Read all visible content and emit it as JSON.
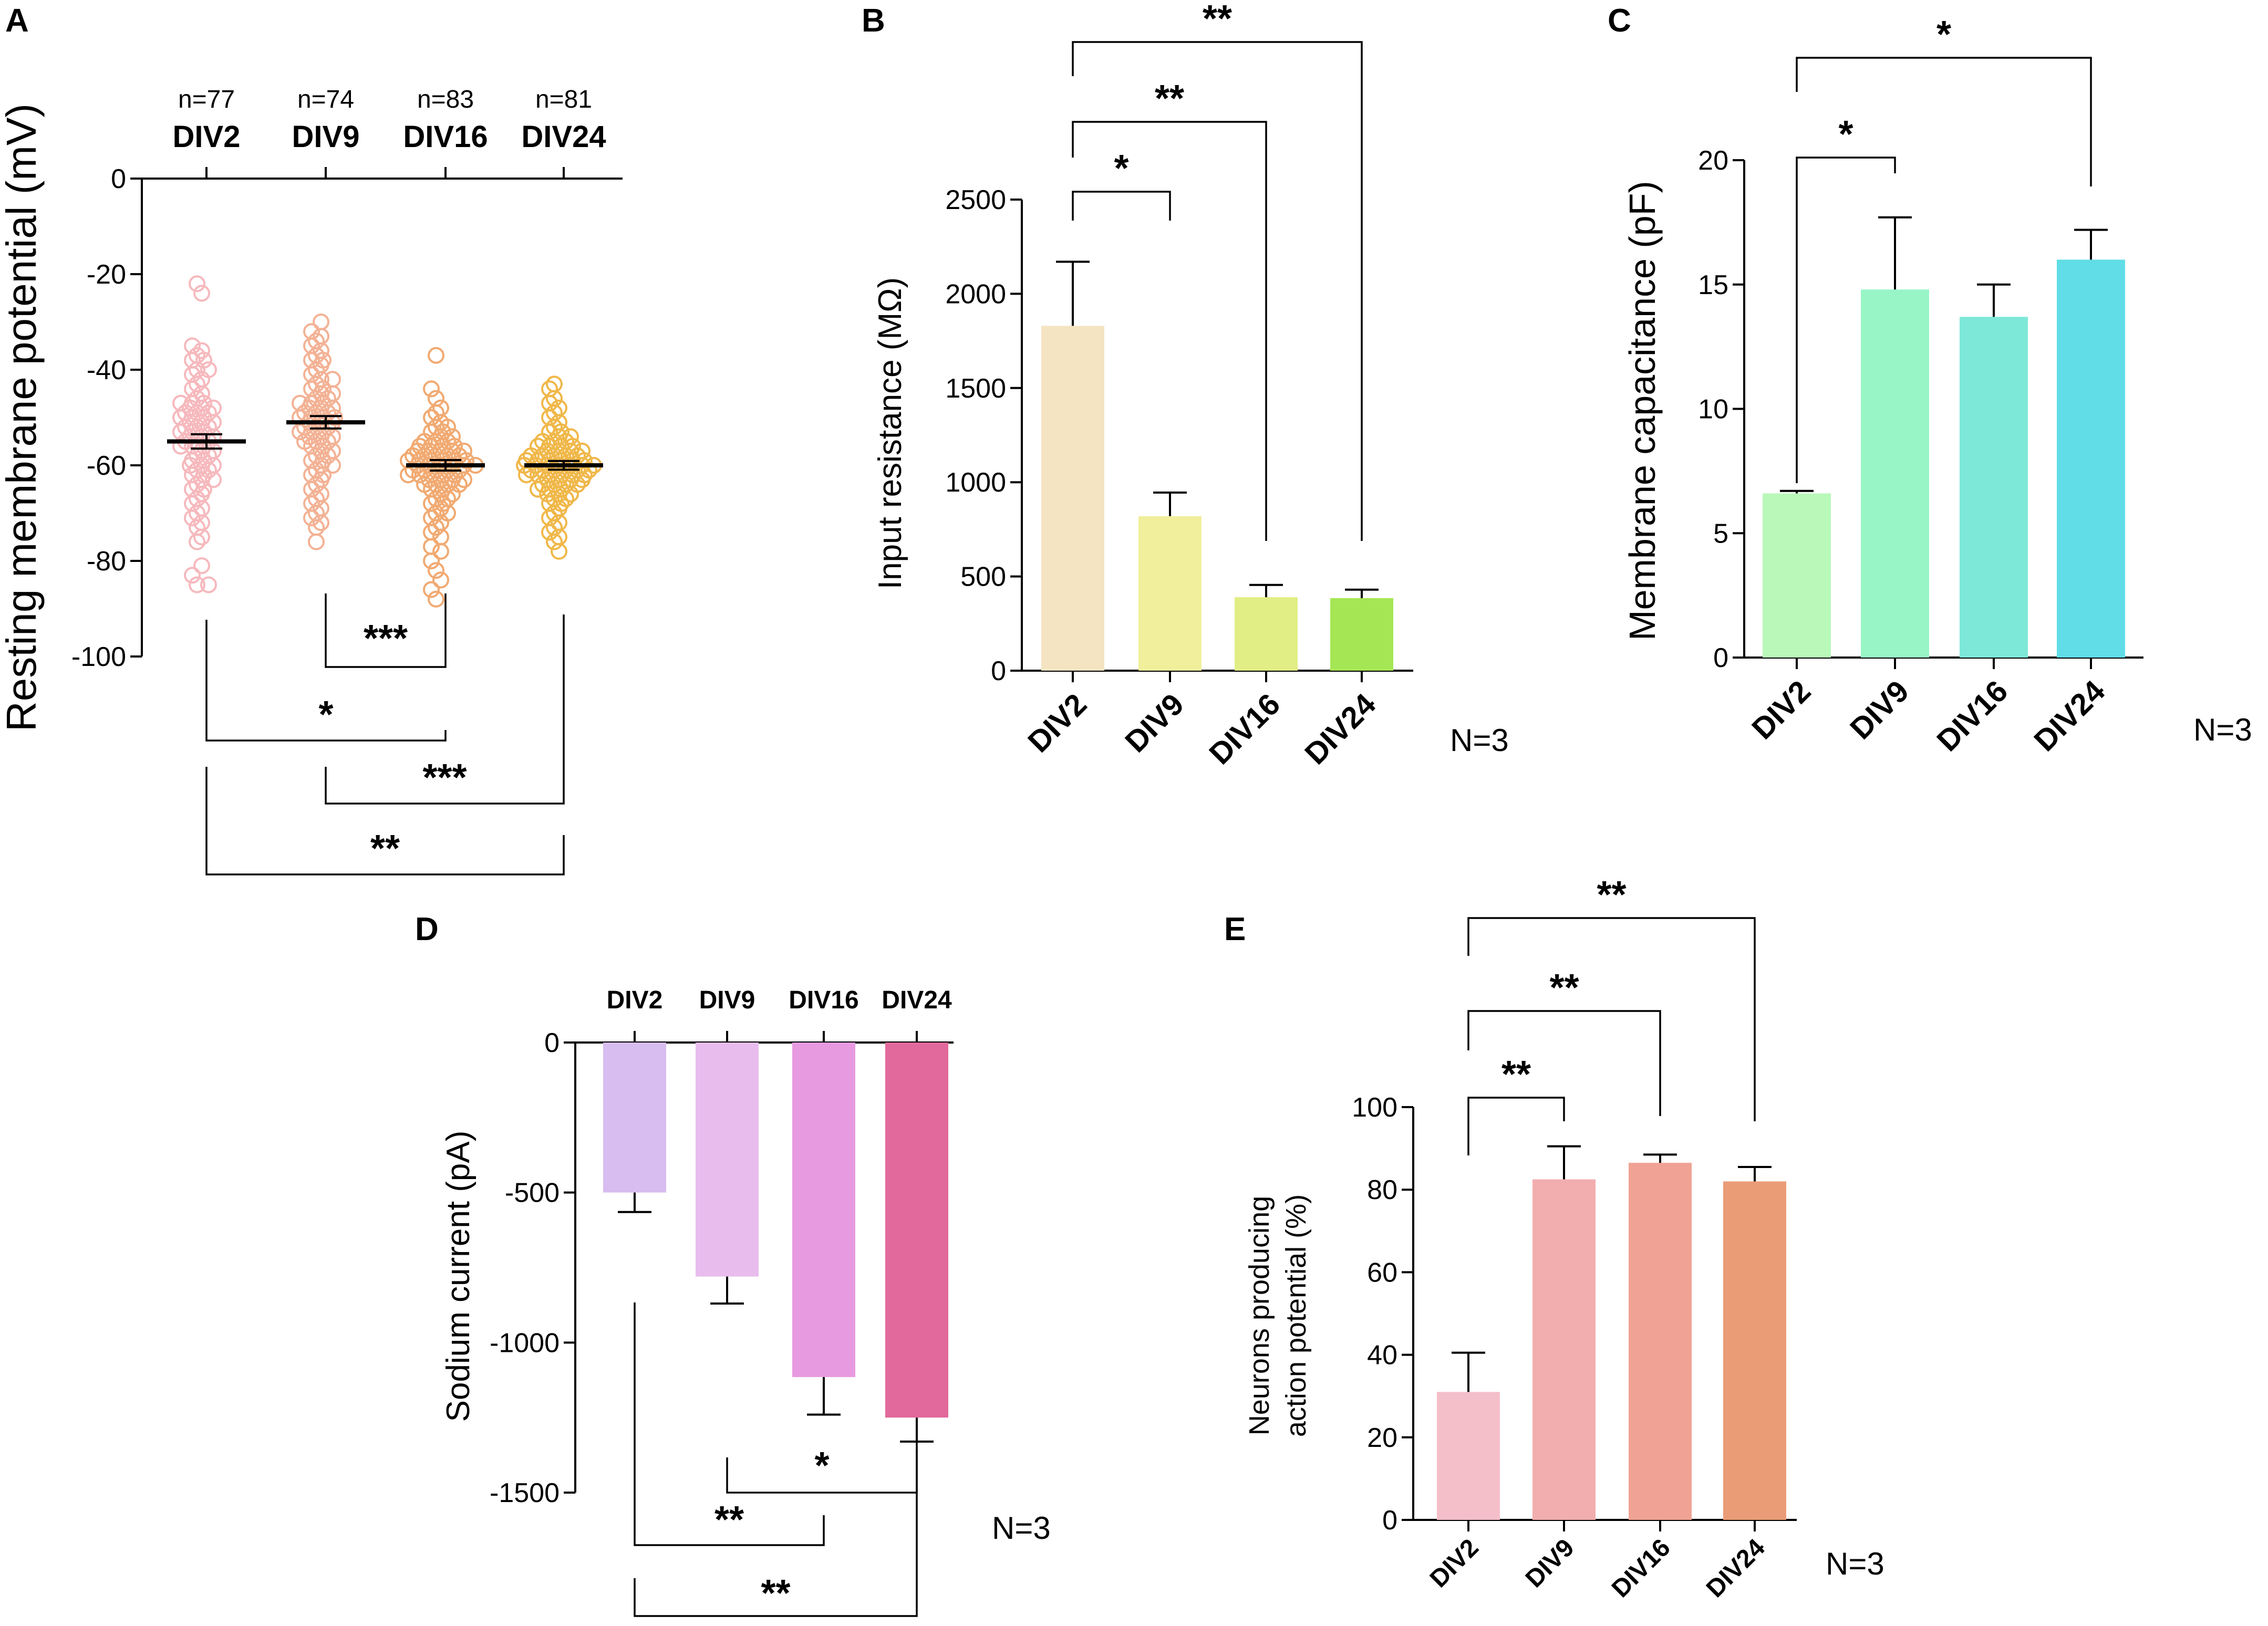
{
  "panels": {
    "A": "A",
    "B": "B",
    "C": "C",
    "D": "D",
    "E": "E"
  },
  "colors": {
    "A": [
      "#f6b9bd",
      "#f3b295",
      "#f1aa72",
      "#f0b84a"
    ],
    "B": [
      "#f4e4c2",
      "#f1ef9c",
      "#e1ee85",
      "#a5e655"
    ],
    "C": [
      "#b9f8b8",
      "#98f6c6",
      "#7ee8d8",
      "#60dde6"
    ],
    "D": [
      "#d8bdf0",
      "#e8bdee",
      "#e89ae0",
      "#e2699c"
    ],
    "E": [
      "#f4bfc9",
      "#f2aeae",
      "#f0a394",
      "#ea9c76"
    ]
  },
  "chart_data": [
    {
      "panel": "A",
      "type": "scatter",
      "ylabel": "Resting membrane potential (mV)",
      "categories": [
        "DIV2",
        "DIV9",
        "DIV16",
        "DIV24"
      ],
      "n_labels": [
        "n=77",
        "n=74",
        "n=83",
        "n=81"
      ],
      "ylim": [
        -100,
        0
      ],
      "yticks": [
        "0",
        "-20",
        "-40",
        "-60",
        "-80",
        "-100"
      ],
      "means": [
        -55,
        -51,
        -60,
        -60
      ],
      "sem": [
        1.5,
        1.3,
        1.1,
        0.9
      ],
      "points": [
        [
          -22,
          -24,
          -35,
          -36,
          -37,
          -38,
          -40,
          -40,
          -41,
          -42,
          -43,
          -44,
          -45,
          -46,
          -47,
          -47,
          -47,
          -48,
          -48,
          -48,
          -49,
          -49,
          -49,
          -50,
          -50,
          -50,
          -51,
          -51,
          -51,
          -52,
          -52,
          -52,
          -53,
          -53,
          -53,
          -54,
          -54,
          -54,
          -55,
          -55,
          -55,
          -56,
          -56,
          -56,
          -57,
          -57,
          -58,
          -58,
          -59,
          -59,
          -60,
          -60,
          -60,
          -61,
          -61,
          -62,
          -62,
          -63,
          -63,
          -64,
          -65,
          -65,
          -66,
          -67,
          -68,
          -69,
          -70,
          -71,
          -72,
          -73,
          -75,
          -76,
          -81,
          -83,
          -85,
          -85,
          -38
        ],
        [
          -30,
          -32,
          -34,
          -36,
          -37,
          -38,
          -38,
          -40,
          -41,
          -42,
          -42,
          -43,
          -44,
          -44,
          -45,
          -45,
          -46,
          -46,
          -47,
          -47,
          -47,
          -48,
          -48,
          -48,
          -49,
          -49,
          -49,
          -50,
          -50,
          -50,
          -50,
          -51,
          -51,
          -51,
          -52,
          -52,
          -52,
          -53,
          -53,
          -53,
          -54,
          -54,
          -54,
          -55,
          -55,
          -55,
          -56,
          -56,
          -57,
          -57,
          -58,
          -58,
          -59,
          -59,
          -60,
          -60,
          -61,
          -62,
          -62,
          -63,
          -64,
          -65,
          -66,
          -67,
          -68,
          -69,
          -70,
          -71,
          -72,
          -73,
          -76,
          -33,
          -39,
          -35
        ],
        [
          -37,
          -44,
          -46,
          -48,
          -49,
          -50,
          -51,
          -52,
          -52,
          -53,
          -53,
          -54,
          -54,
          -55,
          -55,
          -55,
          -56,
          -56,
          -56,
          -57,
          -57,
          -57,
          -57,
          -58,
          -58,
          -58,
          -58,
          -59,
          -59,
          -59,
          -59,
          -59,
          -60,
          -60,
          -60,
          -60,
          -60,
          -61,
          -61,
          -61,
          -61,
          -62,
          -62,
          -62,
          -62,
          -63,
          -63,
          -63,
          -64,
          -64,
          -64,
          -65,
          -65,
          -66,
          -66,
          -67,
          -67,
          -68,
          -68,
          -69,
          -70,
          -70,
          -71,
          -72,
          -73,
          -74,
          -75,
          -77,
          -78,
          -80,
          -82,
          -84,
          -86,
          -88,
          -58,
          -59,
          -60,
          -61,
          -62,
          -63,
          -64,
          -57,
          -56
        ],
        [
          -43,
          -44,
          -46,
          -47,
          -48,
          -49,
          -50,
          -51,
          -52,
          -53,
          -53,
          -54,
          -54,
          -55,
          -55,
          -55,
          -56,
          -56,
          -56,
          -57,
          -57,
          -57,
          -58,
          -58,
          -58,
          -58,
          -59,
          -59,
          -59,
          -59,
          -60,
          -60,
          -60,
          -60,
          -60,
          -61,
          -61,
          -61,
          -61,
          -62,
          -62,
          -62,
          -62,
          -63,
          -63,
          -63,
          -64,
          -64,
          -64,
          -65,
          -65,
          -66,
          -66,
          -67,
          -67,
          -68,
          -68,
          -69,
          -70,
          -71,
          -72,
          -73,
          -74,
          -75,
          -76,
          -78,
          -59,
          -60,
          -61,
          -62,
          -58,
          -57,
          -60,
          -61,
          -59,
          -62,
          -63,
          -56,
          -64,
          -65,
          -66
        ]
      ],
      "significance": [
        {
          "pair": [
            "DIV9",
            "DIV16"
          ],
          "label": "***"
        },
        {
          "pair": [
            "DIV2",
            "DIV16"
          ],
          "label": "*"
        },
        {
          "pair": [
            "DIV9",
            "DIV24"
          ],
          "label": "***"
        },
        {
          "pair": [
            "DIV2",
            "DIV24"
          ],
          "label": "**"
        }
      ]
    },
    {
      "panel": "B",
      "type": "bar",
      "ylabel": "Input resistance (MΩ)",
      "categories": [
        "DIV2",
        "DIV9",
        "DIV16",
        "DIV24"
      ],
      "values": [
        1830,
        820,
        390,
        385
      ],
      "errors": [
        340,
        125,
        65,
        45
      ],
      "ylim": [
        0,
        2500
      ],
      "yticks": [
        "0",
        "500",
        "1000",
        "1500",
        "2000",
        "2500"
      ],
      "n_label": "N=3",
      "significance": [
        {
          "pair": [
            "DIV2",
            "DIV9"
          ],
          "label": "*"
        },
        {
          "pair": [
            "DIV2",
            "DIV16"
          ],
          "label": "**"
        },
        {
          "pair": [
            "DIV2",
            "DIV24"
          ],
          "label": "**"
        }
      ]
    },
    {
      "panel": "C",
      "type": "bar",
      "ylabel": "Membrane capacitance (pF)",
      "categories": [
        "DIV2",
        "DIV9",
        "DIV16",
        "DIV24"
      ],
      "values": [
        6.6,
        14.8,
        13.7,
        16.0
      ],
      "errors": [
        0.1,
        2.9,
        1.3,
        1.2
      ],
      "ylim": [
        0,
        20
      ],
      "yticks": [
        "0",
        "5",
        "10",
        "15",
        "20"
      ],
      "n_label": "N=3",
      "significance": [
        {
          "pair": [
            "DIV2",
            "DIV9"
          ],
          "label": "*"
        },
        {
          "pair": [
            "DIV2",
            "DIV24"
          ],
          "label": "*"
        }
      ]
    },
    {
      "panel": "D",
      "type": "bar",
      "ylabel": "Sodium current (pA)",
      "categories": [
        "DIV2",
        "DIV9",
        "DIV16",
        "DIV24"
      ],
      "values": [
        -500,
        -780,
        -1115,
        -1250
      ],
      "errors": [
        65,
        90,
        125,
        80
      ],
      "ylim": [
        -1500,
        0
      ],
      "yticks": [
        "0",
        "-500",
        "-1000",
        "-1500"
      ],
      "n_label": "N=3",
      "significance": [
        {
          "pair": [
            "DIV9",
            "DIV24"
          ],
          "label": "*"
        },
        {
          "pair": [
            "DIV2",
            "DIV16"
          ],
          "label": "**"
        },
        {
          "pair": [
            "DIV2",
            "DIV24"
          ],
          "label": "**"
        }
      ]
    },
    {
      "panel": "E",
      "type": "bar",
      "ylabel_line1": "Neurons producing",
      "ylabel_line2": "action potential (%)",
      "categories": [
        "DIV2",
        "DIV9",
        "DIV16",
        "DIV24"
      ],
      "values": [
        31,
        82.5,
        86.5,
        82
      ],
      "errors": [
        9.5,
        8,
        2,
        3.5
      ],
      "ylim": [
        0,
        100
      ],
      "yticks": [
        "0",
        "20",
        "40",
        "60",
        "80",
        "100"
      ],
      "n_label": "N=3",
      "significance": [
        {
          "pair": [
            "DIV2",
            "DIV9"
          ],
          "label": "**"
        },
        {
          "pair": [
            "DIV2",
            "DIV16"
          ],
          "label": "**"
        },
        {
          "pair": [
            "DIV2",
            "DIV24"
          ],
          "label": "**"
        }
      ]
    }
  ]
}
